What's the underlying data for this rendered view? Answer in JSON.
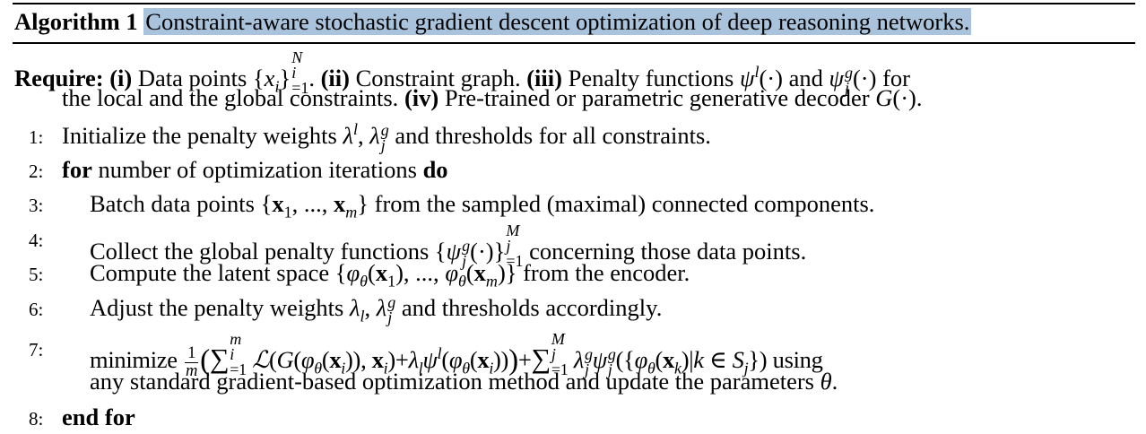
{
  "caption": {
    "label": "Algorithm 1",
    "title": "Constraint-aware stochastic gradient descent optimization of deep reasoning networks."
  },
  "require": {
    "keyword": "Require:",
    "i_label": "(i)",
    "i_text": "Data points",
    "ii_label": "(ii)",
    "ii_text": "Constraint graph.",
    "iii_label": "(iii)",
    "iii_text": "Penalty functions",
    "iii_and": "and",
    "iii_for": "for",
    "cont_text": "the local and the global constraints.",
    "iv_label": "(iv)",
    "iv_text": "Pre-trained or parametric generative decoder"
  },
  "steps": [
    {
      "num": "1:",
      "text_a": "Initialize the penalty weights",
      "text_b": "and thresholds for all constraints."
    },
    {
      "num": "2:",
      "kw_a": "for",
      "text_a": "number of optimization iterations",
      "kw_b": "do"
    },
    {
      "num": "3:",
      "text_a": "Batch data points",
      "text_b": "from the sampled (maximal) connected components."
    },
    {
      "num": "4:",
      "text_a": "Collect the global penalty functions",
      "text_b": "concerning those data points."
    },
    {
      "num": "5:",
      "text_a": "Compute the latent space",
      "text_b": "from the encoder."
    },
    {
      "num": "6:",
      "text_a": "Adjust the penalty weights",
      "text_b": "and thresholds accordingly."
    },
    {
      "num": "7:",
      "text_a": "minimize",
      "text_b": "using",
      "text_c": "any standard gradient-based optimization method and update the parameters"
    },
    {
      "num": "8:",
      "kw_a": "end for"
    }
  ]
}
